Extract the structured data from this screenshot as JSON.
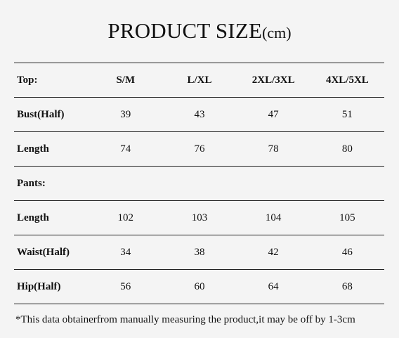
{
  "title": {
    "main": "PRODUCT SIZE",
    "unit": "(cm)"
  },
  "table": {
    "header": [
      "Top:",
      "S/M",
      "L/XL",
      "2XL/3XL",
      "4XL/5XL"
    ],
    "rows": [
      [
        "Bust(Half)",
        "39",
        "43",
        "47",
        "51"
      ],
      [
        "Length",
        "74",
        "76",
        "78",
        "80"
      ],
      [
        "Pants:",
        "",
        "",
        "",
        ""
      ],
      [
        "Length",
        "102",
        "103",
        "104",
        "105"
      ],
      [
        "Waist(Half)",
        "34",
        "38",
        "42",
        "46"
      ],
      [
        "Hip(Half)",
        "56",
        "60",
        "64",
        "68"
      ]
    ]
  },
  "note": "*This data obtainerfrom manually measuring the product,it may be off by 1-3cm"
}
